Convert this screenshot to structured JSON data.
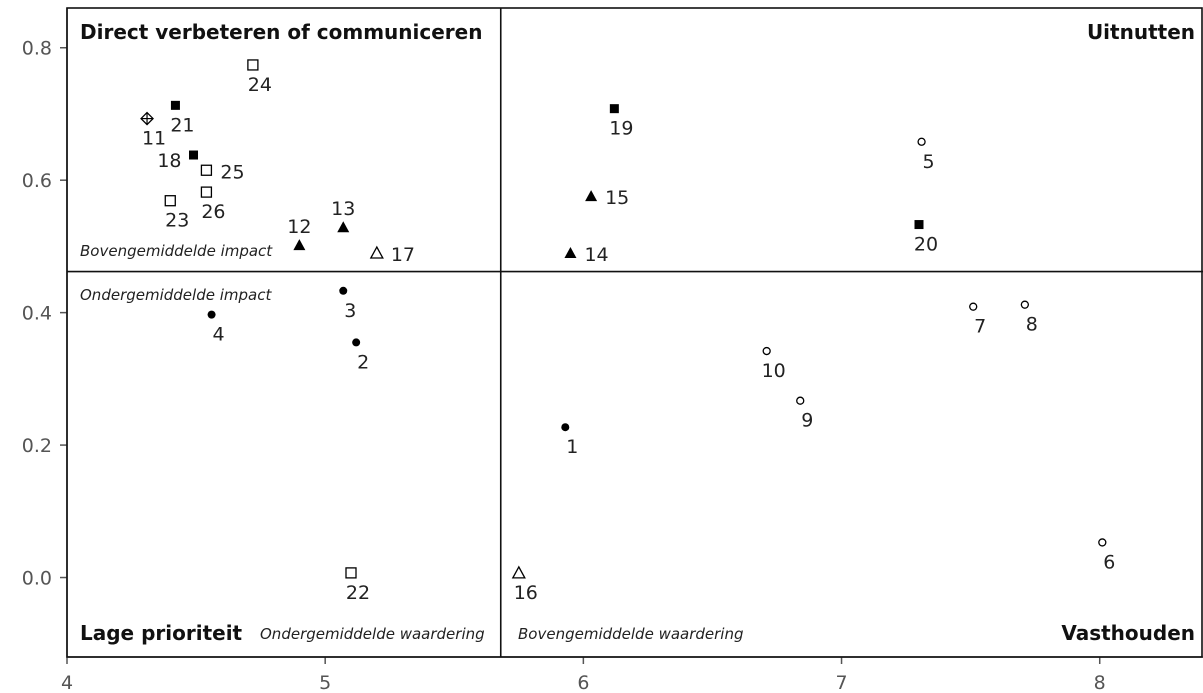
{
  "chart_data": {
    "type": "scatter",
    "title": "",
    "xlabel": "",
    "ylabel": "",
    "xlim": [
      4,
      8.4
    ],
    "ylim": [
      -0.12,
      0.86
    ],
    "xticks": [
      4,
      5,
      6,
      7,
      8
    ],
    "yticks": [
      0.0,
      0.2,
      0.4,
      0.6,
      0.8
    ],
    "ytick_labels": [
      "0.0",
      "0.2",
      "0.4",
      "0.6",
      "0.8"
    ],
    "threshold_x": 5.68,
    "threshold_y": 0.462,
    "grid": false,
    "quadrants": {
      "top_left": "Direct verbeteren of communiceren",
      "top_right": "Uitnutten",
      "bottom_left": "Lage prioriteit",
      "bottom_right": "Vasthouden"
    },
    "notes": {
      "above_avg_impact": "Bovengemiddelde impact",
      "below_avg_impact": "Ondergemiddelde impact",
      "below_avg_rating": "Ondergemiddelde waardering",
      "above_avg_rating": "Bovengemiddelde waardering"
    },
    "points": [
      {
        "label": "1",
        "x": 5.93,
        "y": 0.227,
        "marker": "filled-circle",
        "label_pos": "below"
      },
      {
        "label": "2",
        "x": 5.12,
        "y": 0.355,
        "marker": "filled-circle",
        "label_pos": "below"
      },
      {
        "label": "3",
        "x": 5.07,
        "y": 0.433,
        "marker": "filled-circle",
        "label_pos": "below"
      },
      {
        "label": "4",
        "x": 4.56,
        "y": 0.397,
        "marker": "filled-circle",
        "label_pos": "below"
      },
      {
        "label": "5",
        "x": 7.31,
        "y": 0.658,
        "marker": "open-circle",
        "label_pos": "below"
      },
      {
        "label": "6",
        "x": 8.01,
        "y": 0.053,
        "marker": "open-circle",
        "label_pos": "below"
      },
      {
        "label": "7",
        "x": 7.51,
        "y": 0.409,
        "marker": "open-circle",
        "label_pos": "below"
      },
      {
        "label": "8",
        "x": 7.71,
        "y": 0.412,
        "marker": "open-circle",
        "label_pos": "below"
      },
      {
        "label": "9",
        "x": 6.84,
        "y": 0.267,
        "marker": "open-circle",
        "label_pos": "below"
      },
      {
        "label": "10",
        "x": 6.71,
        "y": 0.342,
        "marker": "open-circle",
        "label_pos": "below"
      },
      {
        "label": "11",
        "x": 4.31,
        "y": 0.693,
        "marker": "crossed-diamond",
        "label_pos": "below"
      },
      {
        "label": "12",
        "x": 4.9,
        "y": 0.502,
        "marker": "filled-triangle",
        "label_pos": "above"
      },
      {
        "label": "13",
        "x": 5.07,
        "y": 0.529,
        "marker": "filled-triangle",
        "label_pos": "above"
      },
      {
        "label": "14",
        "x": 5.95,
        "y": 0.49,
        "marker": "filled-triangle",
        "label_pos": "right"
      },
      {
        "label": "15",
        "x": 6.03,
        "y": 0.576,
        "marker": "filled-triangle",
        "label_pos": "right"
      },
      {
        "label": "16",
        "x": 5.75,
        "y": 0.007,
        "marker": "open-triangle",
        "label_pos": "below"
      },
      {
        "label": "17",
        "x": 5.2,
        "y": 0.49,
        "marker": "open-triangle",
        "label_pos": "right"
      },
      {
        "label": "18",
        "x": 4.49,
        "y": 0.638,
        "marker": "filled-square",
        "label_pos": "left"
      },
      {
        "label": "19",
        "x": 6.12,
        "y": 0.708,
        "marker": "filled-square",
        "label_pos": "below"
      },
      {
        "label": "20",
        "x": 7.3,
        "y": 0.533,
        "marker": "filled-square",
        "label_pos": "below"
      },
      {
        "label": "21",
        "x": 4.42,
        "y": 0.713,
        "marker": "filled-square",
        "label_pos": "below"
      },
      {
        "label": "22",
        "x": 5.1,
        "y": 0.007,
        "marker": "open-square",
        "label_pos": "below"
      },
      {
        "label": "23",
        "x": 4.4,
        "y": 0.569,
        "marker": "open-square",
        "label_pos": "below"
      },
      {
        "label": "24",
        "x": 4.72,
        "y": 0.774,
        "marker": "open-square",
        "label_pos": "below"
      },
      {
        "label": "25",
        "x": 4.54,
        "y": 0.615,
        "marker": "open-square",
        "label_pos": "right"
      },
      {
        "label": "26",
        "x": 4.54,
        "y": 0.582,
        "marker": "open-square",
        "label_pos": "below"
      }
    ]
  }
}
